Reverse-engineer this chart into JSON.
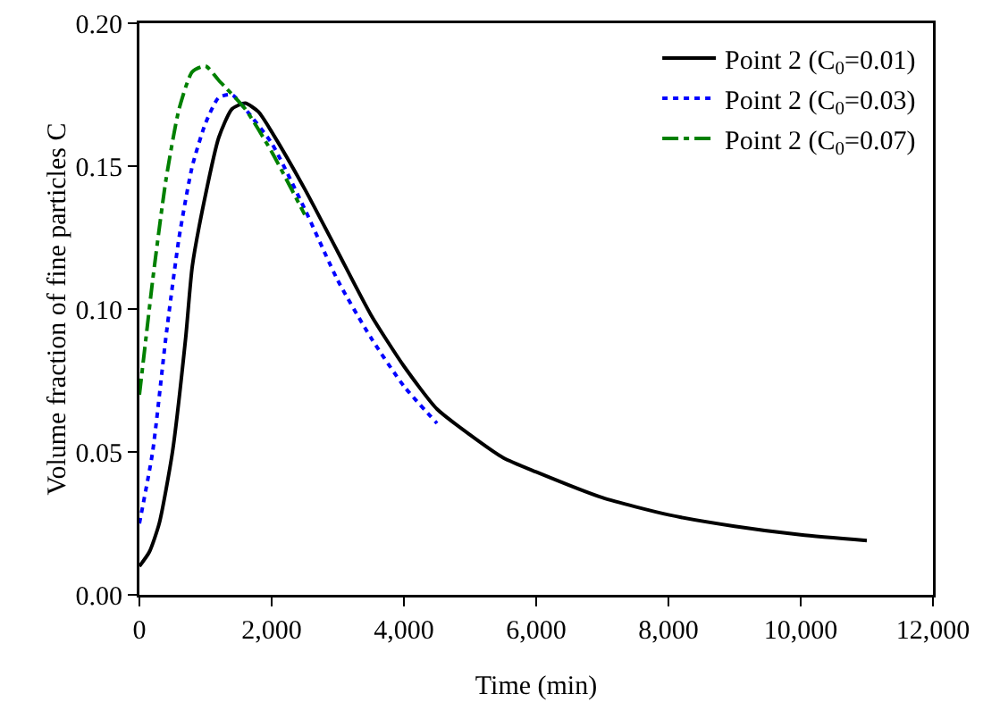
{
  "chart_data": {
    "type": "line",
    "xlabel": "Time (min)",
    "ylabel": "Volume fraction of fine particles C",
    "xlim": [
      0,
      12000
    ],
    "ylim": [
      0,
      0.2
    ],
    "xticks": [
      {
        "value": 0,
        "label": "0"
      },
      {
        "value": 2000,
        "label": "2,000"
      },
      {
        "value": 4000,
        "label": "4,000"
      },
      {
        "value": 6000,
        "label": "6,000"
      },
      {
        "value": 8000,
        "label": "8,000"
      },
      {
        "value": 10000,
        "label": "10,000"
      },
      {
        "value": 12000,
        "label": "12,000"
      }
    ],
    "yticks": [
      {
        "value": 0,
        "label": "0.00"
      },
      {
        "value": 0.05,
        "label": "0.05"
      },
      {
        "value": 0.1,
        "label": "0.10"
      },
      {
        "value": 0.15,
        "label": "0.15"
      },
      {
        "value": 0.2,
        "label": "0.20"
      }
    ],
    "grid": false,
    "legend": "top right",
    "series": [
      {
        "name": "Point 2 (C$_{0}$=0.01)",
        "color": "#000000",
        "line_style": "solid",
        "x": [
          0,
          150,
          300,
          500,
          700,
          800,
          1000,
          1200,
          1400,
          1600,
          1800,
          2000,
          2500,
          3000,
          3500,
          4000,
          4500,
          5000,
          5500,
          6000,
          7000,
          8000,
          9000,
          10000,
          11000
        ],
        "values": [
          0.01,
          0.015,
          0.025,
          0.05,
          0.09,
          0.115,
          0.14,
          0.16,
          0.17,
          0.172,
          0.169,
          0.162,
          0.142,
          0.12,
          0.098,
          0.08,
          0.065,
          0.056,
          0.048,
          0.043,
          0.034,
          0.028,
          0.024,
          0.021,
          0.019
        ]
      },
      {
        "name": "Point 2 (C$_{0}$=0.03)",
        "color": "#0000ff",
        "line_style": "dotted",
        "x": [
          0,
          200,
          400,
          600,
          800,
          1000,
          1200,
          1400,
          1600,
          2000,
          2500,
          3000,
          3500,
          4000,
          4500
        ],
        "values": [
          0.025,
          0.05,
          0.09,
          0.125,
          0.15,
          0.165,
          0.174,
          0.175,
          0.17,
          0.158,
          0.135,
          0.11,
          0.09,
          0.073,
          0.06
        ]
      },
      {
        "name": "Point 2 (C$_{0}$=0.07)",
        "color": "#008000",
        "line_style": "dashdot",
        "x": [
          0,
          100,
          200,
          400,
          600,
          800,
          1000,
          1200,
          1600,
          2000,
          2500
        ],
        "values": [
          0.07,
          0.09,
          0.11,
          0.145,
          0.17,
          0.183,
          0.185,
          0.18,
          0.17,
          0.155,
          0.133
        ]
      }
    ]
  }
}
